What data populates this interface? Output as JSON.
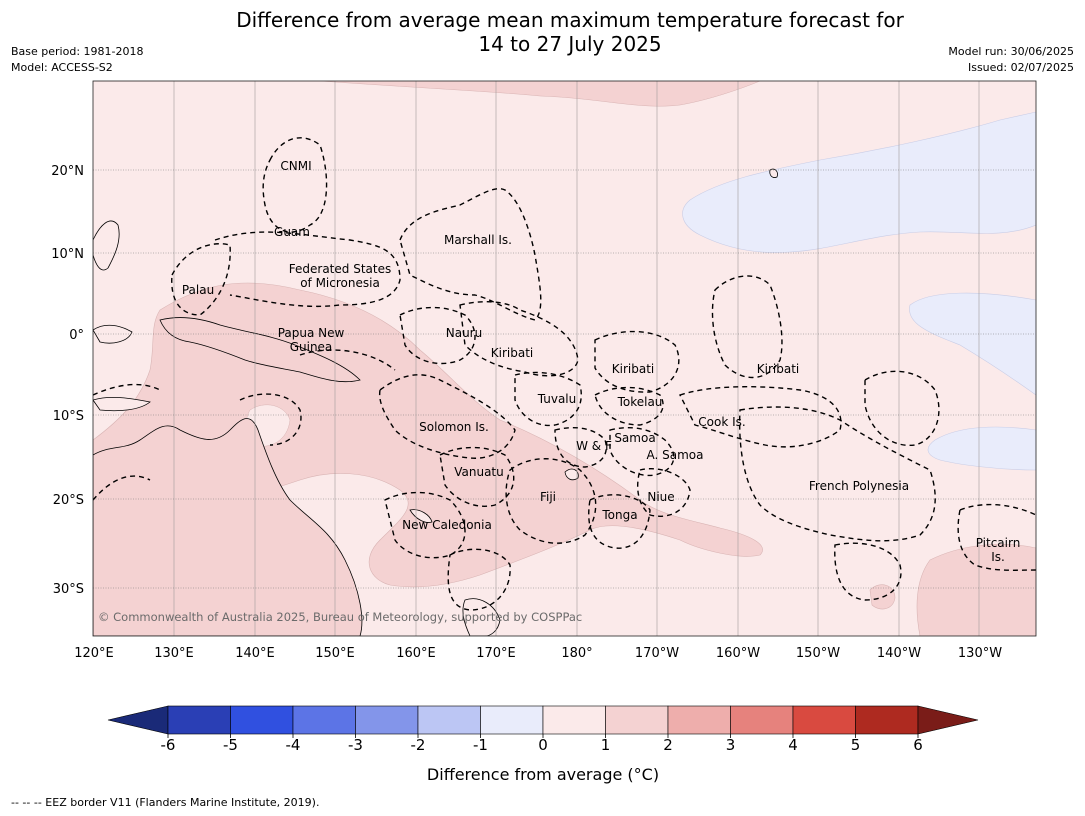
{
  "title": {
    "line1": "Difference from average mean maximum temperature forecast for",
    "line2": "14 to 27 July 2025"
  },
  "meta_left": {
    "base_period": "Base period: 1981-2018",
    "model": "Model: ACCESS-S2"
  },
  "meta_right": {
    "model_run": "Model run: 30/06/2025",
    "issued": "Issued: 02/07/2025"
  },
  "map": {
    "lon_labels": [
      "120°E",
      "130°E",
      "140°E",
      "150°E",
      "160°E",
      "170°E",
      "180°",
      "170°W",
      "160°W",
      "150°W",
      "140°W",
      "130°W"
    ],
    "lat_labels": [
      "20°N",
      "10°N",
      "0°",
      "10°S",
      "20°S",
      "30°S"
    ],
    "copyright": "© Commonwealth of Australia 2025, Bureau of Meteorology, supported by COSPPac",
    "places": {
      "cnmi": "CNMI",
      "guam": "Guam",
      "marshall": "Marshall Is.",
      "fsm1": "Federated States",
      "fsm2": "of Micronesia",
      "palau": "Palau",
      "png1": "Papua New",
      "png2": "Guinea",
      "nauru": "Nauru",
      "kiribati_w": "Kiribati",
      "kiribati_c": "Kiribati",
      "kiribati_e": "Kiribati",
      "tuvalu": "Tuvalu",
      "tokelau": "Tokelau",
      "cook": "Cook Is.",
      "solomon": "Solomon Is.",
      "wf": "W & F",
      "samoa": "Samoa",
      "asamoa": "A. Samoa",
      "vanuatu": "Vanuatu",
      "fiji": "Fiji",
      "niue": "Niue",
      "tonga": "Tonga",
      "frpoly": "French Polynesia",
      "newcal": "New Caledonia",
      "pitcairn1": "Pitcairn",
      "pitcairn2": "Is."
    }
  },
  "colorbar": {
    "ticks": [
      "-6",
      "-5",
      "-4",
      "-3",
      "-2",
      "-1",
      "0",
      "1",
      "2",
      "3",
      "4",
      "5",
      "6"
    ],
    "colors": [
      "#1a2a78",
      "#2a3fb5",
      "#3050e0",
      "#5c74e6",
      "#8395ea",
      "#bcc6f4",
      "#e9ecfb",
      "#fbeaea",
      "#f4d2d2",
      "#eeaeac",
      "#e6827d",
      "#d94a40",
      "#ae2a20",
      "#7a1c18"
    ],
    "label": "Difference from average (°C)"
  },
  "footnote": "--  --  -- EEZ border V11 (Flanders Marine Institute, 2019)."
}
